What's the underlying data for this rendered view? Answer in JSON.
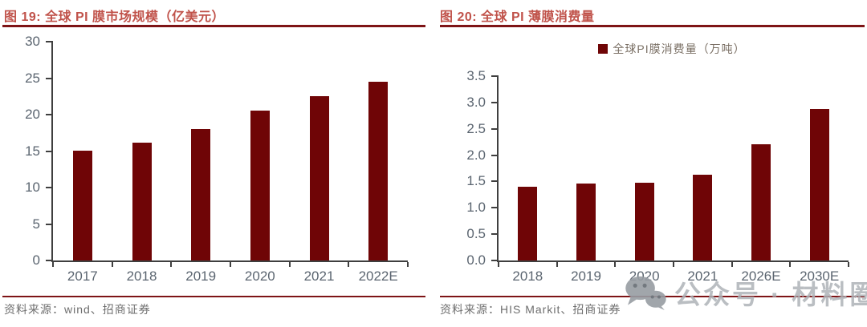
{
  "chart_data": [
    {
      "type": "bar",
      "title": "图 19: 全球 PI 膜市场规模（亿美元）",
      "categories": [
        "2017",
        "2018",
        "2019",
        "2020",
        "2021",
        "2022E"
      ],
      "values": [
        15.1,
        16.2,
        18.0,
        20.5,
        22.5,
        24.5
      ],
      "ylim": [
        0,
        30
      ],
      "ytick_step": 5,
      "ytick_decimals": 0,
      "grid": false,
      "legend": null,
      "source": "资料来源：wind、招商证券"
    },
    {
      "type": "bar",
      "title": "图 20: 全球 PI 薄膜消费量",
      "legend": "全球PI膜消费量（万吨）",
      "legend_position": "top-center",
      "categories": [
        "2018",
        "2019",
        "2020",
        "2021",
        "2026E",
        "2030E"
      ],
      "values": [
        1.4,
        1.46,
        1.48,
        1.63,
        2.2,
        2.87
      ],
      "ylim": [
        0,
        3.5
      ],
      "ytick_step": 0.5,
      "ytick_decimals": 1,
      "grid": false,
      "source": "资料来源：HIS Markit、招商证券"
    }
  ],
  "watermark": {
    "icon": "wechat-icon",
    "text": "公众号 · 材料圈"
  },
  "theme": {
    "bar-color": "#6f0506",
    "title-color": "#c0524a",
    "rule-color": "#7e1416",
    "axis-color": "#3f3f3f",
    "tick-label-color": "#5b6570",
    "source-color": "#6e6e6e",
    "legend-text-color": "#7a6f64",
    "watermark-color": "#aeb3b8"
  }
}
